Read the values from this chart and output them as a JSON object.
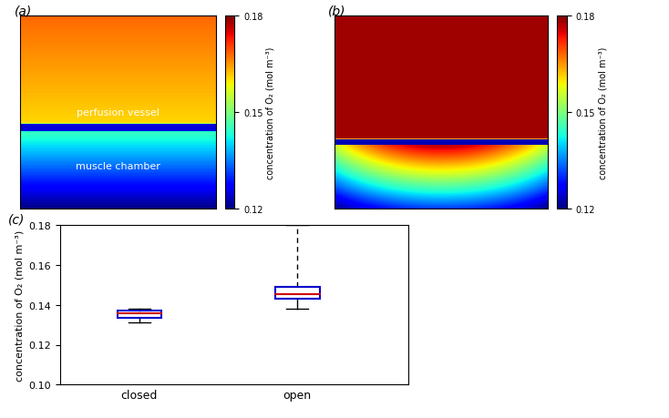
{
  "colormap": "jet",
  "vmin": 0.12,
  "vmax": 0.18,
  "colorbar_ticks": [
    0.12,
    0.15,
    0.18
  ],
  "colorbar_label": "concentration of O₂ (mol m⁻³)",
  "panel_a_label": "(a)",
  "panel_b_label": "(b)",
  "panel_c_label": "(c)",
  "panel_a_text1": "perfusion vessel",
  "panel_a_text2": "muscle chamber",
  "closed_box": {
    "whisker_low": 0.131,
    "q1": 0.1335,
    "median": 0.1358,
    "q3": 0.137,
    "whisker_high": 0.138,
    "mean": 0.136
  },
  "open_box": {
    "whisker_low": 0.138,
    "q1": 0.143,
    "median": 0.1455,
    "q3": 0.149,
    "whisker_high": 0.18,
    "mean": 0.146
  },
  "boxplot_ylim": [
    0.1,
    0.18
  ],
  "boxplot_yticks": [
    0.1,
    0.12,
    0.14,
    0.16,
    0.18
  ],
  "boxplot_ylabel": "concentration of O₂ (mol m⁻³)",
  "box_color": "#0000cc",
  "median_color": "#cc0000",
  "whisker_color": "#000000",
  "background_color": "#ffffff"
}
